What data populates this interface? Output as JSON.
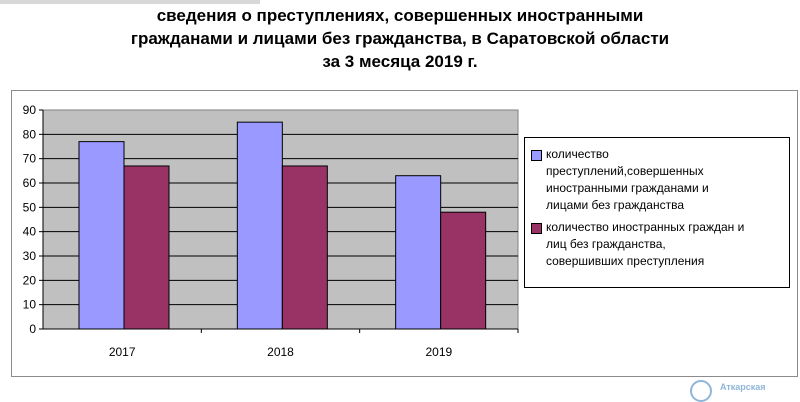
{
  "chart_data": {
    "type": "bar",
    "title": [
      "сведения о преступлениях,  совершенных иностранными",
      "гражданами и лицами без гражданства, в Саратовской области",
      "за 3 месяца 2019 г."
    ],
    "categories": [
      "2017",
      "2018",
      "2019"
    ],
    "series": [
      {
        "name": "количество преступлений,совершенных иностранными гражданами и лицами без гражданства",
        "values": [
          77,
          85,
          63
        ],
        "color": "#9999ff"
      },
      {
        "name": "количество иностранных граждан и лиц без гражданства, совершивших преступления",
        "values": [
          67,
          67,
          48
        ],
        "color": "#993366"
      }
    ],
    "ylim": [
      0,
      90
    ],
    "yticks": [
      "0",
      "10",
      "20",
      "30",
      "40",
      "50",
      "60",
      "70",
      "80",
      "90"
    ],
    "grid": true,
    "plot_background": "#c0c0c0",
    "legend_position": "right",
    "legend_lines": [
      [
        "количество",
        "преступлений,совершенных",
        "иностранными гражданами и",
        "лицами без гражданства"
      ],
      [
        "количество иностранных граждан и",
        "лиц без гражданства,",
        "совершивших преступления"
      ]
    ]
  },
  "logo": {
    "text": "Аткарская"
  }
}
